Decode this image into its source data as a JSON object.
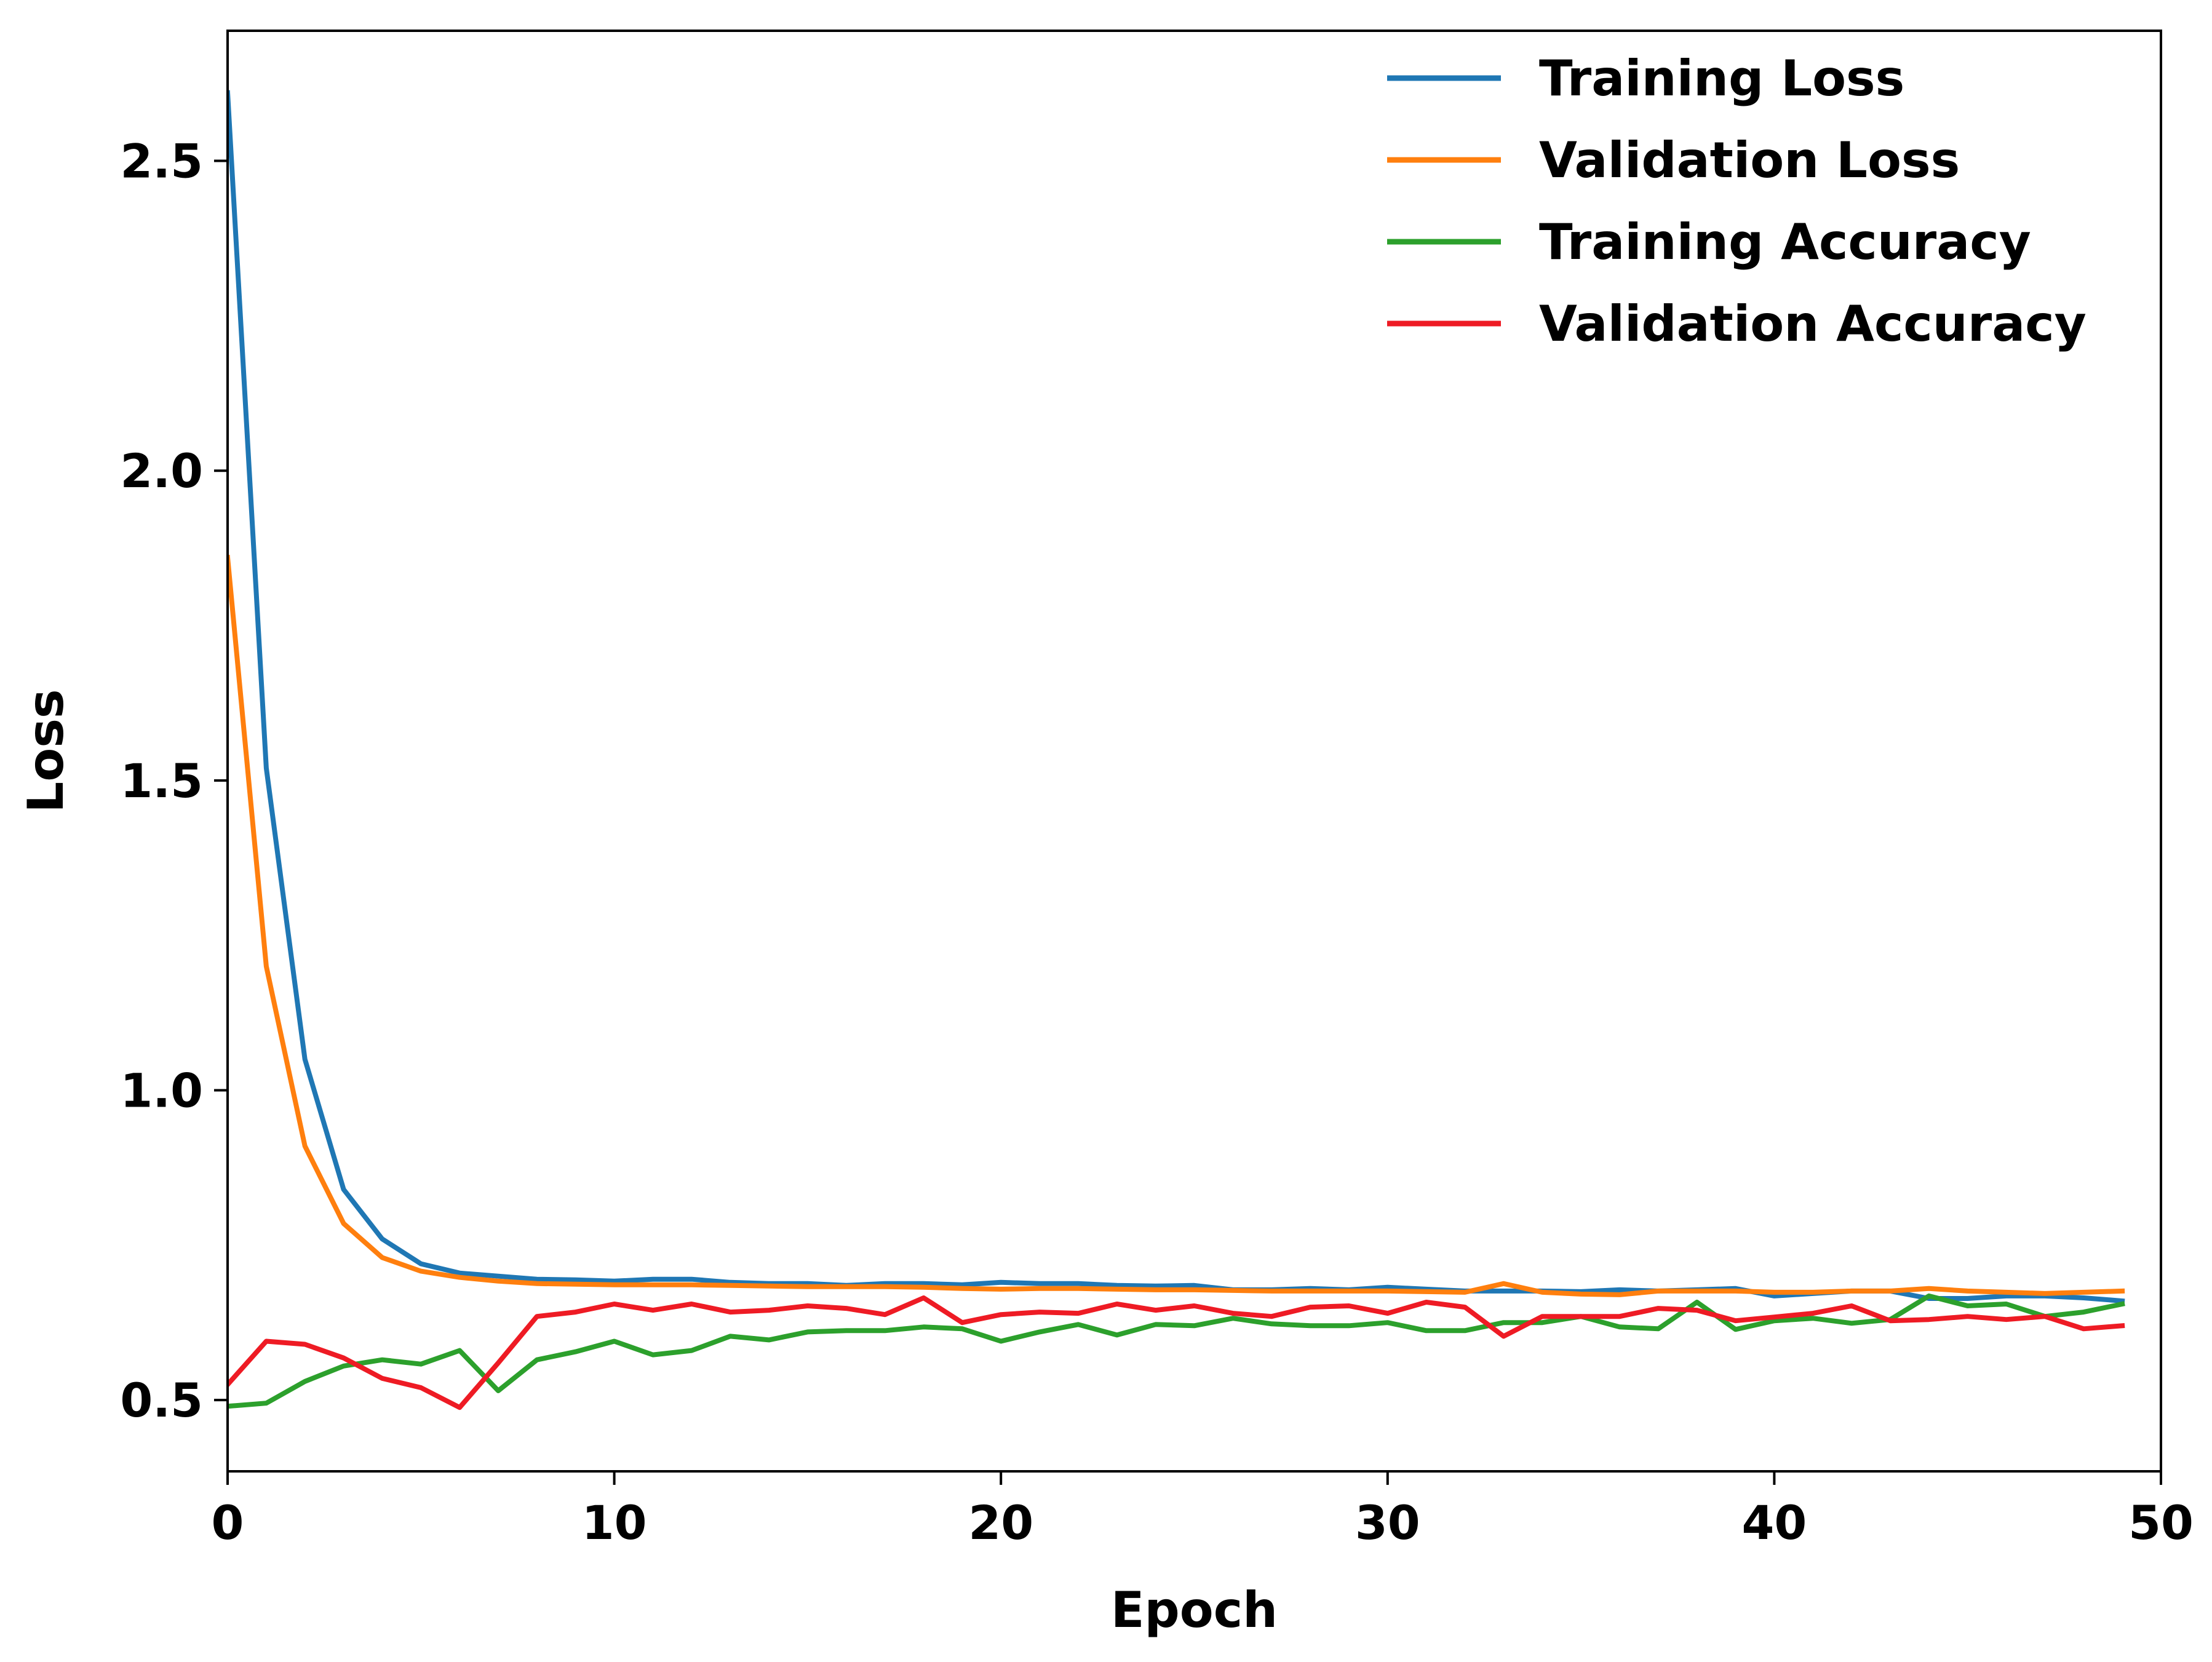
{
  "chart_data": {
    "type": "line",
    "title": "",
    "xlabel": "Epoch",
    "ylabel": "Loss",
    "xlim": [
      0,
      50
    ],
    "ylim": [
      0.385,
      2.71
    ],
    "xticks": [
      0,
      10,
      20,
      30,
      40,
      50
    ],
    "xtick_labels": [
      "0",
      "10",
      "20",
      "30",
      "40",
      "50"
    ],
    "yticks": [
      0.5,
      1.0,
      1.5,
      2.0,
      2.5
    ],
    "ytick_labels": [
      "0.5",
      "1.0",
      "1.5",
      "2.0",
      "2.5"
    ],
    "grid": false,
    "legend_position": "top-right",
    "x": [
      0,
      1,
      2,
      3,
      4,
      5,
      6,
      7,
      8,
      9,
      10,
      11,
      12,
      13,
      14,
      15,
      16,
      17,
      18,
      19,
      20,
      21,
      22,
      23,
      24,
      25,
      26,
      27,
      28,
      29,
      30,
      31,
      32,
      33,
      34,
      35,
      36,
      37,
      38,
      39,
      40,
      41,
      42,
      43,
      44,
      45,
      46,
      47,
      48,
      49
    ],
    "series": [
      {
        "name": "Training Loss",
        "color": "#1f77b4",
        "values": [
          2.61,
          1.52,
          1.05,
          0.84,
          0.76,
          0.72,
          0.705,
          0.7,
          0.695,
          0.694,
          0.692,
          0.695,
          0.695,
          0.69,
          0.688,
          0.688,
          0.685,
          0.688,
          0.688,
          0.686,
          0.69,
          0.688,
          0.688,
          0.685,
          0.684,
          0.685,
          0.678,
          0.678,
          0.68,
          0.678,
          0.682,
          0.679,
          0.676,
          0.676,
          0.676,
          0.675,
          0.678,
          0.676,
          0.678,
          0.68,
          0.668,
          0.672,
          0.676,
          0.676,
          0.664,
          0.664,
          0.668,
          0.668,
          0.665,
          0.66
        ]
      },
      {
        "name": "Validation Loss",
        "color": "#ff7f0e",
        "values": [
          1.86,
          1.2,
          0.91,
          0.785,
          0.73,
          0.708,
          0.698,
          0.692,
          0.688,
          0.687,
          0.686,
          0.686,
          0.686,
          0.685,
          0.684,
          0.683,
          0.683,
          0.683,
          0.682,
          0.68,
          0.679,
          0.68,
          0.68,
          0.679,
          0.678,
          0.678,
          0.677,
          0.676,
          0.676,
          0.676,
          0.676,
          0.675,
          0.674,
          0.688,
          0.674,
          0.671,
          0.67,
          0.676,
          0.676,
          0.676,
          0.674,
          0.674,
          0.676,
          0.676,
          0.68,
          0.676,
          0.674,
          0.672,
          0.674,
          0.676
        ]
      },
      {
        "name": "Training Accuracy",
        "color": "#2ca02c",
        "values": [
          0.49,
          0.495,
          0.53,
          0.555,
          0.565,
          0.558,
          0.58,
          0.515,
          0.565,
          0.578,
          0.595,
          0.573,
          0.58,
          0.603,
          0.597,
          0.61,
          0.612,
          0.612,
          0.618,
          0.615,
          0.595,
          0.61,
          0.622,
          0.605,
          0.622,
          0.62,
          0.632,
          0.623,
          0.62,
          0.62,
          0.625,
          0.612,
          0.612,
          0.625,
          0.625,
          0.635,
          0.618,
          0.615,
          0.658,
          0.614,
          0.628,
          0.632,
          0.624,
          0.63,
          0.668,
          0.652,
          0.655,
          0.635,
          0.642,
          0.655
        ]
      },
      {
        "name": "Validation Accuracy",
        "color": "#ee1b24",
        "values": [
          0.525,
          0.595,
          0.59,
          0.568,
          0.535,
          0.52,
          0.488,
          0.56,
          0.635,
          0.642,
          0.655,
          0.645,
          0.655,
          0.642,
          0.645,
          0.652,
          0.648,
          0.638,
          0.665,
          0.625,
          0.638,
          0.642,
          0.64,
          0.655,
          0.645,
          0.652,
          0.64,
          0.635,
          0.65,
          0.652,
          0.64,
          0.658,
          0.65,
          0.603,
          0.635,
          0.635,
          0.635,
          0.648,
          0.645,
          0.628,
          0.634,
          0.64,
          0.652,
          0.628,
          0.63,
          0.635,
          0.63,
          0.635,
          0.615,
          0.62
        ]
      }
    ]
  }
}
